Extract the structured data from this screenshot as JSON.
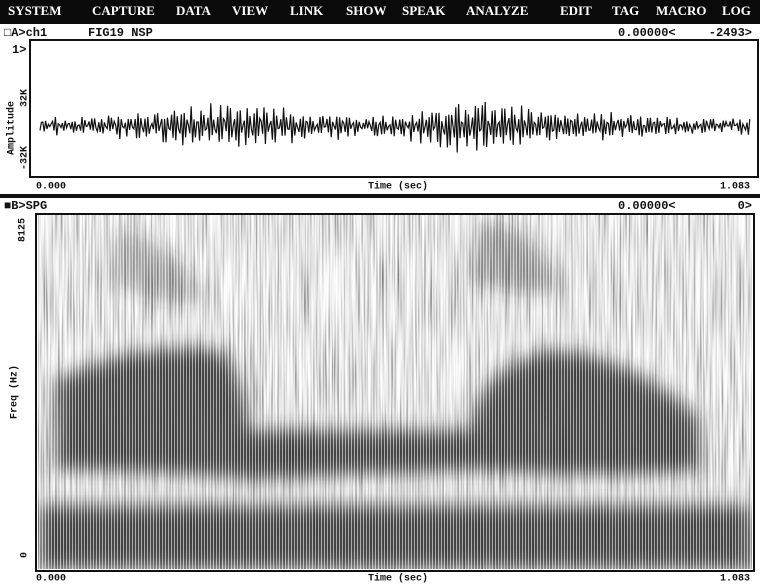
{
  "menu": [
    "SYSTEM",
    "CAPTURE",
    "DATA",
    "VIEW",
    "LINK",
    "SHOW",
    "SPEAK",
    "ANALYZE",
    "EDIT",
    "TAG",
    "MACRO",
    "LOG"
  ],
  "panel_a": {
    "title": "□A>ch1",
    "file": "FIG19 NSP",
    "cursor": "0.00000<",
    "value": "-2493>",
    "channel": "1>",
    "y_label": "Amplitude",
    "y_max": "32K",
    "y_min": "-32K",
    "x_start": "0.000",
    "x_label": "Time (sec)",
    "x_end": "1.083"
  },
  "panel_b": {
    "title": "■B>SPG",
    "cursor": "0.00000<",
    "value": "0>",
    "y_label": "Freq (Hz)",
    "y_max": "8125",
    "y_min": "0",
    "x_start": "0.000",
    "x_label": "Time (sec)",
    "x_end": "1.083"
  }
}
